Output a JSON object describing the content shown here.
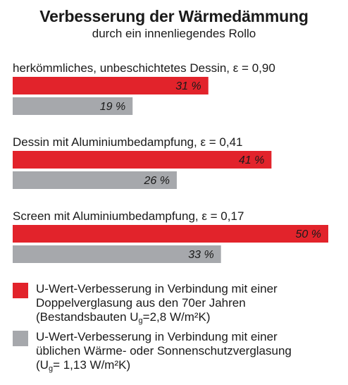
{
  "chart_data": {
    "type": "bar",
    "orientation": "horizontal",
    "title": "Verbesserung der Wärmedämmung",
    "subtitle": "durch ein innenliegendes Rollo",
    "xlim": [
      0,
      50
    ],
    "categories": [
      "herkömmliches, unbeschichtetes Dessin, ε = 0,90",
      "Dessin mit Aluminiumbedampfung, ε = 0,41",
      "Screen mit Aluminiumbedampfung, ε = 0,17"
    ],
    "series": [
      {
        "name": "U-Wert-Verbesserung in Verbindung mit einer Doppelverglasung aus den 70er Jahren (Bestandsbauten Ug=2,8 W/m²K)",
        "values": [
          31,
          41,
          50
        ],
        "labels": [
          "31 %",
          "41 %",
          "50 %"
        ],
        "color": "#e2232b"
      },
      {
        "name": "U-Wert-Verbesserung in Verbindung mit einer üblichen Wärme- oder Sonnenschutzverglasung (Ug= 1,13 W/m²K)",
        "values": [
          19,
          26,
          33
        ],
        "labels": [
          "19 %",
          "26 %",
          "33 %"
        ],
        "color": "#a6a8ac"
      }
    ],
    "grid": false,
    "legend_position": "bottom"
  },
  "legend": [
    {
      "color": "#e2232b",
      "line1": "U-Wert-Verbesserung in Verbindung mit einer",
      "line2": "Doppelverglasung aus den 70er Jahren",
      "line3_pre": "(Bestandsbauten U",
      "sub": "g",
      "line3_post": "=2,8 W/m²K)"
    },
    {
      "color": "#a6a8ac",
      "line1": "U-Wert-Verbesserung in Verbindung mit einer",
      "line2": "üblichen Wärme- oder Sonnenschutzverglasung",
      "line3_pre": "(U",
      "sub": "g",
      "line3_post": "= 1,13 W/m²K)"
    }
  ]
}
